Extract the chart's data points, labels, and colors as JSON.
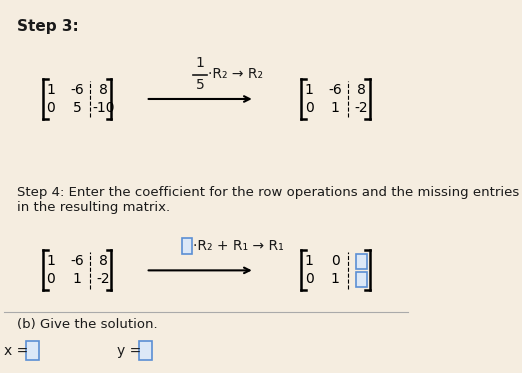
{
  "bg_color": "#f5ede0",
  "text_color": "#1a1a1a",
  "step3_label": "Step 3:",
  "step4_label": "Step 4: Enter the coefficient for the row operations and the missing entries\nin the resulting matrix.",
  "solution_label": "(b) Give the solution.",
  "x_label": "x = ",
  "y_label": "y = ",
  "fraction_num": "1",
  "fraction_den": "5",
  "op3_arrow": "·R₂ → R₂",
  "op4_arrow": "·R₂ + R₁ → R₁",
  "mat1_rows": [
    [
      "1",
      "-6",
      "8"
    ],
    [
      "0",
      "5",
      "-10"
    ]
  ],
  "mat2_rows": [
    [
      "1",
      "-6",
      "8"
    ],
    [
      "0",
      "1",
      "-2"
    ]
  ],
  "mat3_rows": [
    [
      "1",
      "-6",
      "8"
    ],
    [
      "0",
      "1",
      "-2"
    ]
  ],
  "mat4_rows": [
    [
      "1",
      "0",
      ""
    ],
    [
      "0",
      "1",
      ""
    ]
  ],
  "box_color": "#5b8fd4",
  "box_bg": "#dce8f7",
  "separator_col": 2
}
